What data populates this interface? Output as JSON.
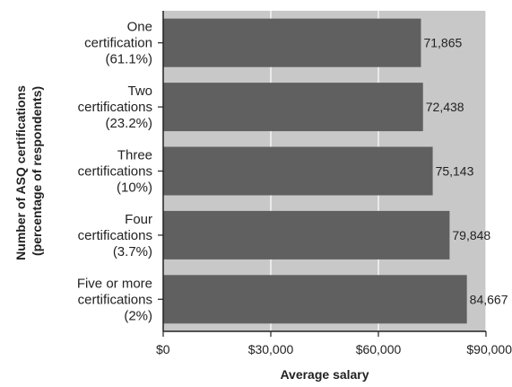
{
  "chart_data": {
    "type": "bar",
    "orientation": "horizontal",
    "title": "",
    "xlabel": "Average salary",
    "ylabel_lines": [
      "Number of ASQ certifications",
      "(percentage of respondents)"
    ],
    "categories": [
      [
        "One",
        "certification",
        "(61.1%)"
      ],
      [
        "Two",
        "certifications",
        "(23.2%)"
      ],
      [
        "Three",
        "certifications",
        "(10%)"
      ],
      [
        "Four",
        "certifications",
        "(3.7%)"
      ],
      [
        "Five or more",
        "certifications",
        "(2%)"
      ]
    ],
    "values": [
      71865,
      72438,
      75143,
      79848,
      84667
    ],
    "value_labels": [
      "71,865",
      "72,438",
      "75,143",
      "79,848",
      "84,667"
    ],
    "xlim": [
      0,
      90000
    ],
    "x_ticks": [
      0,
      30000,
      60000,
      90000
    ],
    "x_tick_labels": [
      "$0",
      "$30,000",
      "$60,000",
      "$90,000"
    ],
    "grid": true,
    "colors": {
      "plot_bg": "#c8c8c8",
      "bar": "#606060",
      "grid": "#ffffff",
      "axis": "#222222"
    }
  }
}
